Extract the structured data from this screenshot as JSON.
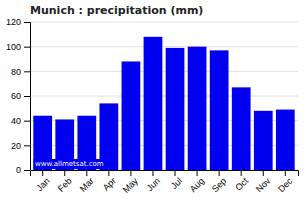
{
  "chart_data": {
    "type": "bar",
    "title": "Munich : precipitation (mm)",
    "categories": [
      "Jan",
      "Feb",
      "Mar",
      "Apr",
      "May",
      "Jun",
      "Jul",
      "Aug",
      "Sep",
      "Oct",
      "Nov",
      "Dec"
    ],
    "values": [
      44,
      41,
      44,
      54,
      88,
      108,
      99,
      100,
      97,
      67,
      48,
      49
    ],
    "color": "#0000EE",
    "ylim": [
      0,
      120
    ],
    "yticks": [
      0,
      20,
      40,
      60,
      80,
      100,
      120
    ],
    "grid": true,
    "annotations": [
      "www.allmetsat.com"
    ]
  }
}
